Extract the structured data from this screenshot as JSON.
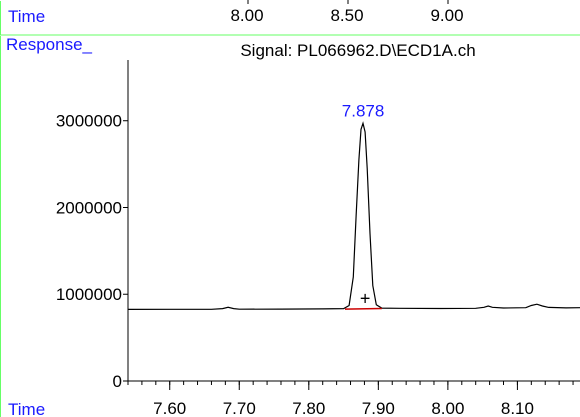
{
  "top_strip": {
    "label": "Time",
    "ticks": [
      "8.00",
      "8.50",
      "9.00"
    ]
  },
  "chart_data": {
    "type": "line",
    "title": "Signal: PL066962.D\\ECD1A.ch",
    "xlabel": "Time",
    "ylabel": "Response_",
    "xlim": [
      7.54,
      8.19
    ],
    "ylim": [
      0,
      3700000
    ],
    "x_ticks": [
      "7.60",
      "7.70",
      "7.80",
      "7.90",
      "8.00",
      "8.10"
    ],
    "x_tick_values": [
      7.6,
      7.7,
      7.8,
      7.9,
      8.0,
      8.1
    ],
    "x_minor_step": 0.02,
    "y_ticks": [
      "0",
      "1000000",
      "2000000",
      "3000000"
    ],
    "y_tick_values": [
      0,
      1000000,
      2000000,
      3000000
    ],
    "series": [
      {
        "color": "#000000",
        "points": [
          [
            7.54,
            825000
          ],
          [
            7.6,
            826000
          ],
          [
            7.66,
            827000
          ],
          [
            7.676,
            835000
          ],
          [
            7.684,
            850000
          ],
          [
            7.692,
            835000
          ],
          [
            7.7,
            828000
          ],
          [
            7.76,
            829000
          ],
          [
            7.82,
            831000
          ],
          [
            7.85,
            835000
          ],
          [
            7.858,
            870000
          ],
          [
            7.864,
            1200000
          ],
          [
            7.868,
            1900000
          ],
          [
            7.872,
            2550000
          ],
          [
            7.875,
            2900000
          ],
          [
            7.878,
            2970000
          ],
          [
            7.881,
            2870000
          ],
          [
            7.884,
            2450000
          ],
          [
            7.888,
            1700000
          ],
          [
            7.892,
            1100000
          ],
          [
            7.897,
            880000
          ],
          [
            7.905,
            840000
          ],
          [
            7.93,
            838000
          ],
          [
            7.99,
            836000
          ],
          [
            8.04,
            838000
          ],
          [
            8.052,
            850000
          ],
          [
            8.058,
            865000
          ],
          [
            8.064,
            850000
          ],
          [
            8.08,
            842000
          ],
          [
            8.112,
            845000
          ],
          [
            8.12,
            870000
          ],
          [
            8.128,
            885000
          ],
          [
            8.136,
            865000
          ],
          [
            8.145,
            848000
          ],
          [
            8.17,
            843000
          ],
          [
            8.19,
            845000
          ]
        ]
      }
    ],
    "baseline": {
      "color": "#cc0000",
      "x": [
        7.852,
        7.905
      ],
      "y": [
        828000,
        836000
      ]
    },
    "peak_label": {
      "text": "7.878",
      "x": 7.878,
      "y": 2970000,
      "color": "#1a1aff"
    },
    "marker": {
      "text": "+",
      "x": 7.881,
      "y": 880000
    }
  }
}
